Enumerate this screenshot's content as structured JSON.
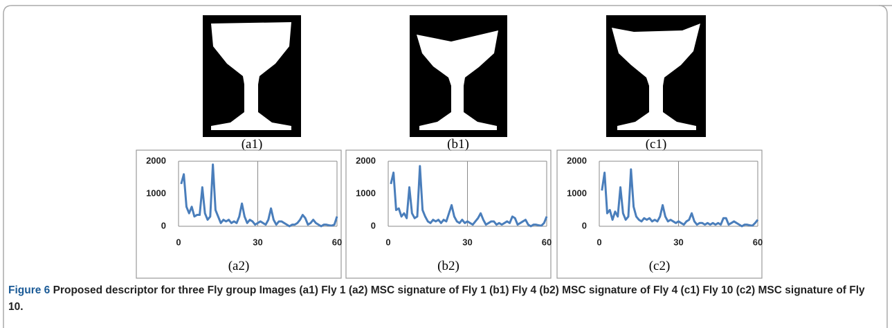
{
  "panels": [
    "(a1)",
    "(b1)",
    "(c1)"
  ],
  "caption": {
    "label": "Figure 6",
    "title": "Proposed descriptor for three Fly group Images",
    "text": "(a1) Fly 1 (a2) MSC signature of Fly 1 (b1) Fly 4 (b2) MSC signature of Fly 4 (c1) Fly 10 (c2) MSC signature of Fly 10."
  },
  "chart_data": [
    {
      "type": "line",
      "label": "(a2)",
      "color": "#4a7ebb",
      "xlim": [
        0,
        60
      ],
      "xticks": [
        0,
        30,
        60
      ],
      "ylim": [
        0,
        2000
      ],
      "yticks": [
        0,
        1000,
        2000
      ],
      "grid": "x",
      "x": [
        1,
        2,
        3,
        4,
        5,
        6,
        7,
        8,
        9,
        10,
        11,
        12,
        13,
        14,
        15,
        16,
        17,
        18,
        19,
        20,
        21,
        22,
        23,
        24,
        25,
        26,
        27,
        28,
        29,
        30,
        31,
        32,
        33,
        34,
        35,
        36,
        37,
        38,
        39,
        40,
        41,
        42,
        43,
        44,
        45,
        46,
        47,
        48,
        49,
        50,
        51,
        52,
        53,
        54,
        55,
        56,
        57,
        58,
        59,
        60
      ],
      "values": [
        1300,
        1600,
        600,
        400,
        600,
        300,
        350,
        350,
        1200,
        400,
        200,
        300,
        1900,
        500,
        300,
        100,
        200,
        150,
        200,
        100,
        150,
        100,
        300,
        700,
        300,
        100,
        200,
        150,
        50,
        100,
        150,
        100,
        50,
        200,
        550,
        200,
        50,
        150,
        150,
        100,
        50,
        0,
        50,
        50,
        100,
        200,
        350,
        250,
        50,
        100,
        200,
        100,
        50,
        0,
        50,
        50,
        30,
        20,
        50,
        300
      ]
    },
    {
      "type": "line",
      "label": "(b2)",
      "color": "#4a7ebb",
      "xlim": [
        0,
        60
      ],
      "xticks": [
        0,
        30,
        60
      ],
      "ylim": [
        0,
        2000
      ],
      "yticks": [
        0,
        1000,
        2000
      ],
      "grid": "x",
      "x": [
        1,
        2,
        3,
        4,
        5,
        6,
        7,
        8,
        9,
        10,
        11,
        12,
        13,
        14,
        15,
        16,
        17,
        18,
        19,
        20,
        21,
        22,
        23,
        24,
        25,
        26,
        27,
        28,
        29,
        30,
        31,
        32,
        33,
        34,
        35,
        36,
        37,
        38,
        39,
        40,
        41,
        42,
        43,
        44,
        45,
        46,
        47,
        48,
        49,
        50,
        51,
        52,
        53,
        54,
        55,
        56,
        57,
        58,
        59,
        60
      ],
      "values": [
        1300,
        1650,
        500,
        550,
        300,
        400,
        250,
        1200,
        400,
        250,
        300,
        1850,
        500,
        300,
        150,
        100,
        200,
        150,
        200,
        100,
        200,
        150,
        400,
        650,
        300,
        150,
        100,
        200,
        100,
        150,
        100,
        50,
        150,
        250,
        400,
        200,
        50,
        100,
        150,
        150,
        50,
        100,
        50,
        100,
        150,
        100,
        300,
        250,
        50,
        100,
        150,
        200,
        50,
        0,
        50,
        50,
        30,
        20,
        100,
        300
      ]
    },
    {
      "type": "line",
      "label": "(c2)",
      "color": "#4a7ebb",
      "xlim": [
        0,
        60
      ],
      "xticks": [
        0,
        30,
        60
      ],
      "ylim": [
        0,
        2000
      ],
      "yticks": [
        0,
        1000,
        2000
      ],
      "grid": "x",
      "x": [
        1,
        2,
        3,
        4,
        5,
        6,
        7,
        8,
        9,
        10,
        11,
        12,
        13,
        14,
        15,
        16,
        17,
        18,
        19,
        20,
        21,
        22,
        23,
        24,
        25,
        26,
        27,
        28,
        29,
        30,
        31,
        32,
        33,
        34,
        35,
        36,
        37,
        38,
        39,
        40,
        41,
        42,
        43,
        44,
        45,
        46,
        47,
        48,
        49,
        50,
        51,
        52,
        53,
        54,
        55,
        56,
        57,
        58,
        59,
        60
      ],
      "values": [
        1100,
        1650,
        400,
        500,
        200,
        450,
        300,
        1200,
        400,
        200,
        300,
        1750,
        600,
        300,
        200,
        150,
        250,
        200,
        250,
        150,
        200,
        150,
        300,
        650,
        300,
        150,
        200,
        150,
        100,
        150,
        100,
        50,
        150,
        200,
        400,
        150,
        50,
        100,
        100,
        50,
        100,
        50,
        100,
        50,
        100,
        50,
        250,
        250,
        50,
        100,
        150,
        100,
        50,
        0,
        50,
        50,
        30,
        20,
        100,
        200
      ]
    }
  ]
}
